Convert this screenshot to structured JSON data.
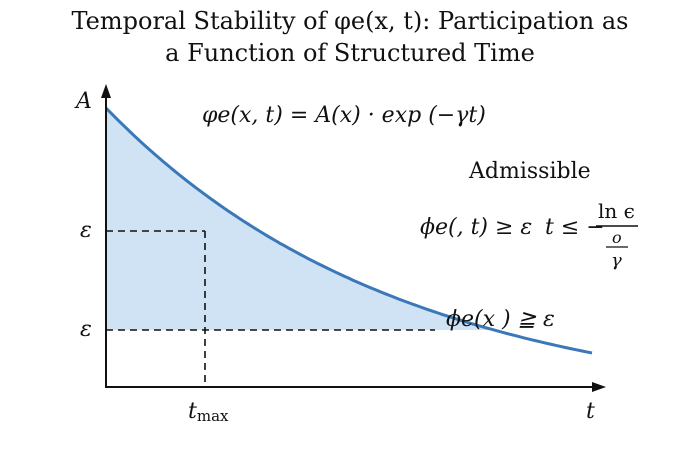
{
  "chart_data": {
    "type": "area",
    "title_line1": "Temporal Stability of φe(x, t): Participation as",
    "title_line2": "a Function of Structured Time",
    "xlabel": "t",
    "ylabel": "A",
    "y_tick_labels": [
      "ε",
      "ε"
    ],
    "x_tick_labels": [
      "tmax"
    ],
    "annotations": {
      "formula": "φe(x, t) = A(x) · exp (−γt)",
      "admissible": "Admissible",
      "condition_lhs": "ϕe(, t) ≥ ε",
      "condition_rhs": "t ≤ −",
      "frac_num": "ln ϵ",
      "frac_den": "o",
      "frac_den2": "γ",
      "threshold": "ϕe(x ) ≧ ε"
    },
    "curve_color": "#3a78b8",
    "fill_color": "#cfe3f5"
  }
}
